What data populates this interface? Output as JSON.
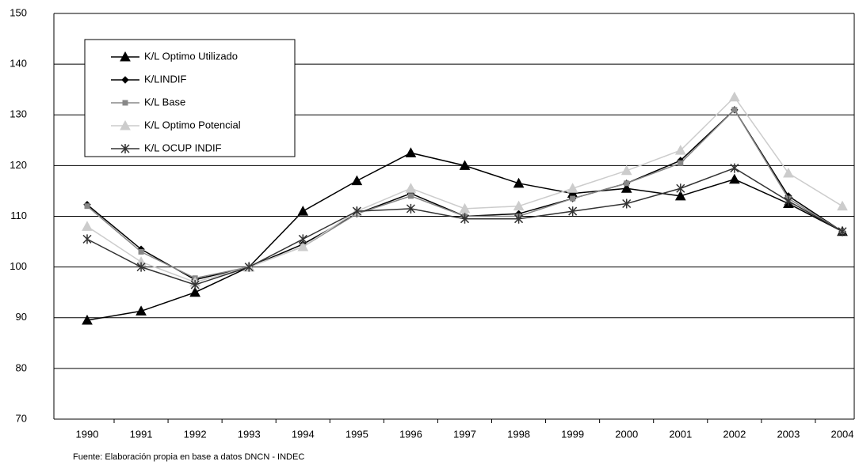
{
  "chart_data": {
    "type": "line",
    "categories": [
      "1990",
      "1991",
      "1992",
      "1993",
      "1994",
      "1995",
      "1996",
      "1997",
      "1998",
      "1999",
      "2000",
      "2001",
      "2002",
      "2003",
      "2004"
    ],
    "series": [
      {
        "name": "K/L Optimo Utilizado",
        "color": "#000000",
        "marker": "triangle",
        "values": [
          89.5,
          91.3,
          95,
          100,
          111,
          117,
          122.5,
          120,
          116.5,
          114.5,
          115.5,
          114,
          117.3,
          112.5,
          107
        ]
      },
      {
        "name": "K/LINDIF",
        "color": "#000000",
        "marker": "diamond",
        "values": [
          112.3,
          103.5,
          97.5,
          100,
          104.5,
          110.5,
          114.5,
          110,
          110.5,
          113.5,
          116.5,
          121,
          131,
          114,
          107
        ]
      },
      {
        "name": "K/L Base",
        "color": "#888888",
        "marker": "square",
        "values": [
          112,
          103,
          97.8,
          100,
          104,
          110.5,
          114,
          110,
          110,
          113.5,
          116.5,
          120.5,
          131,
          113.5,
          107
        ]
      },
      {
        "name": "K/L Optimo Potencial",
        "color": "#cccccc",
        "marker": "triangle",
        "values": [
          108,
          101,
          97,
          100,
          104,
          111,
          115.5,
          111.5,
          112,
          115.5,
          119,
          123,
          133.5,
          118.5,
          112
        ]
      },
      {
        "name": "K/L OCUP INDIF",
        "color": "#333333",
        "marker": "star",
        "values": [
          105.5,
          100,
          96.5,
          100,
          105.5,
          111,
          111.5,
          109.5,
          109.5,
          111,
          112.5,
          115.5,
          119.5,
          113,
          107
        ]
      }
    ],
    "ylim": [
      70,
      150
    ],
    "yticks": [
      70,
      80,
      90,
      100,
      110,
      120,
      130,
      140,
      150
    ],
    "grid": true,
    "footnote": "Fuente: Elaboración propia en base a datos DNCN - INDEC"
  }
}
